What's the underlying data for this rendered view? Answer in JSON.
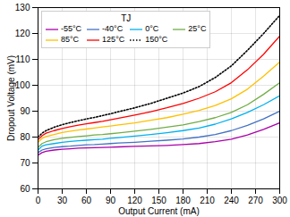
{
  "chart_data": {
    "type": "line",
    "xlabel": "Output Current (mA)",
    "ylabel": "Dropout Voltage (mV)",
    "legend_title": "TJ",
    "xlim": [
      0,
      300
    ],
    "ylim": [
      60,
      130
    ],
    "xticks": [
      0,
      30,
      60,
      90,
      120,
      150,
      180,
      210,
      240,
      270,
      300
    ],
    "yticks": [
      60,
      70,
      80,
      90,
      100,
      110,
      120,
      130
    ],
    "grid": true,
    "legend": "upper left",
    "x": [
      0,
      5,
      10,
      20,
      30,
      40,
      50,
      60,
      70,
      80,
      90,
      100,
      120,
      140,
      160,
      180,
      200,
      220,
      240,
      260,
      280,
      300
    ],
    "series": [
      {
        "name": "-55°C",
        "color": "#aa00aa",
        "line_style": "solid",
        "values": [
          73,
          74,
          74.5,
          75,
          75.3,
          75.5,
          75.7,
          75.8,
          75.9,
          76,
          76.1,
          76.2,
          76.4,
          76.6,
          76.8,
          77.1,
          77.5,
          78.2,
          79.2,
          80.8,
          83,
          85.5
        ]
      },
      {
        "name": "-40°C",
        "color": "#4472c4",
        "line_style": "solid",
        "values": [
          74,
          75,
          75.5,
          76,
          76.3,
          76.5,
          76.8,
          77,
          77.1,
          77.3,
          77.5,
          77.7,
          78,
          78.4,
          78.8,
          79.3,
          80,
          81,
          82.5,
          84.5,
          87,
          90
        ]
      },
      {
        "name": "0°C",
        "color": "#00b0f0",
        "line_style": "solid",
        "values": [
          75,
          76.5,
          77,
          77.5,
          78,
          78.3,
          78.6,
          78.8,
          79,
          79.2,
          79.5,
          79.8,
          80.4,
          81,
          81.7,
          82.5,
          83.5,
          85,
          87,
          89.5,
          92.5,
          96
        ]
      },
      {
        "name": "25°C",
        "color": "#70ad47",
        "line_style": "solid",
        "values": [
          76,
          77.5,
          78.2,
          79,
          79.5,
          79.9,
          80.2,
          80.5,
          80.8,
          81,
          81.3,
          81.6,
          82.3,
          83,
          83.8,
          84.7,
          86,
          87.5,
          89.5,
          92.5,
          96.5,
          101
        ]
      },
      {
        "name": "85°C",
        "color": "#ffc000",
        "line_style": "solid",
        "values": [
          78,
          79.5,
          80.2,
          81,
          81.8,
          82.3,
          82.7,
          83.1,
          83.5,
          83.9,
          84.3,
          84.7,
          85.5,
          86.5,
          87.5,
          88.8,
          90.3,
          92.2,
          94.8,
          98.5,
          103.5,
          109
        ]
      },
      {
        "name": "125°C",
        "color": "#ff0000",
        "line_style": "solid",
        "values": [
          79,
          80.5,
          81.5,
          82.5,
          83.3,
          84,
          84.6,
          85.1,
          85.6,
          86.1,
          86.7,
          87.3,
          88.5,
          89.8,
          91.3,
          93,
          95,
          97.5,
          101,
          106,
          112,
          119
        ]
      },
      {
        "name": "150°C",
        "color": "#000000",
        "line_style": "dotted",
        "values": [
          80,
          81.5,
          82.5,
          83.8,
          84.8,
          85.6,
          86.3,
          87,
          87.6,
          88.3,
          89,
          89.8,
          91.3,
          93,
          95,
          97,
          99.5,
          103,
          107.5,
          113.5,
          120,
          127
        ]
      }
    ]
  }
}
